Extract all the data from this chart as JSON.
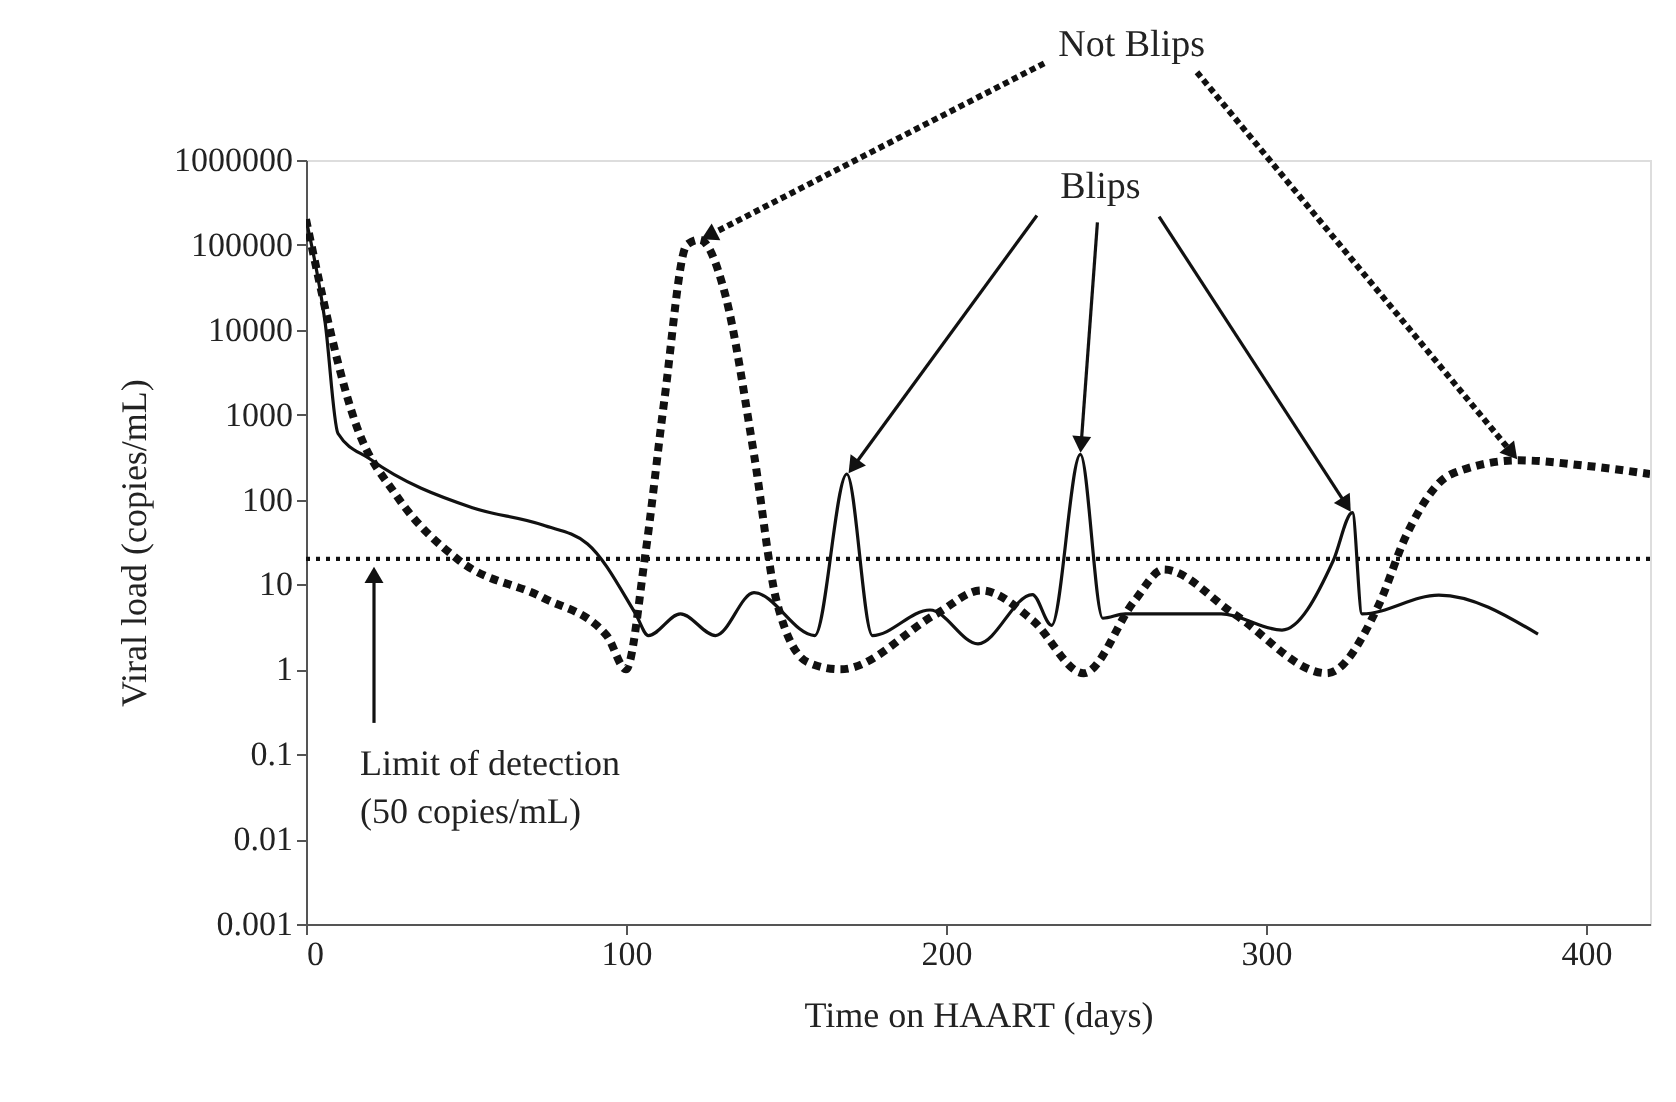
{
  "chart_data": {
    "type": "line",
    "xlabel": "Time on HAART (days)",
    "ylabel": "Viral load (copies/mL)",
    "log": "y",
    "grid": false,
    "xlim": [
      0,
      420
    ],
    "xticks": [
      0,
      100,
      200,
      300,
      400
    ],
    "ylim": [
      0.001,
      1000000
    ],
    "yticks": [
      0.001,
      0.01,
      0.1,
      1,
      10,
      100,
      1000,
      10000,
      100000,
      1000000
    ],
    "series": [
      {
        "color": "#111111",
        "line_style": "solid",
        "x": [
          0,
          6,
          10,
          20,
          52,
          74,
          88,
          103,
          107,
          117,
          128,
          140,
          159,
          169,
          177,
          195,
          210,
          227,
          233,
          242,
          249,
          256,
          286,
          305,
          321,
          327,
          330,
          354,
          385
        ],
        "values": [
          200000,
          12000,
          600,
          300,
          80,
          50,
          30,
          4.5,
          2.5,
          4.5,
          2.5,
          8,
          2.5,
          200,
          2.5,
          5,
          2,
          7.6,
          3.3,
          340,
          4,
          4.5,
          4.5,
          2.9,
          19,
          70,
          4.5,
          7.5,
          2.6
        ]
      },
      {
        "color": "#111111",
        "line_style": "dashed",
        "x": [
          0,
          16,
          28,
          48,
          74,
          94,
          100,
          106,
          112,
          119,
          123,
          131,
          140,
          147,
          157,
          167,
          197,
          211,
          227,
          243,
          259,
          268,
          290,
          319,
          335,
          344,
          358,
          379,
          400,
          420
        ],
        "values": [
          200000,
          700,
          115,
          19,
          7,
          2.5,
          1,
          22,
          1500,
          100000,
          115000,
          26000,
          340,
          6.5,
          1.2,
          1,
          4.5,
          8.5,
          3.8,
          0.9,
          6.5,
          15,
          4.5,
          0.9,
          5.5,
          39,
          200,
          290,
          250,
          200
        ]
      }
    ],
    "ref_lines": [
      {
        "axis": "y",
        "value": 20,
        "label": "Limit of detection\n(50 copies/mL)",
        "line_style": "dotted",
        "color": "#111111"
      }
    ],
    "annotations": [
      {
        "text": "Not Blips",
        "x": 123,
        "y": 115000
      },
      {
        "text": "Blips",
        "x": 242,
        "y": 340
      }
    ]
  }
}
